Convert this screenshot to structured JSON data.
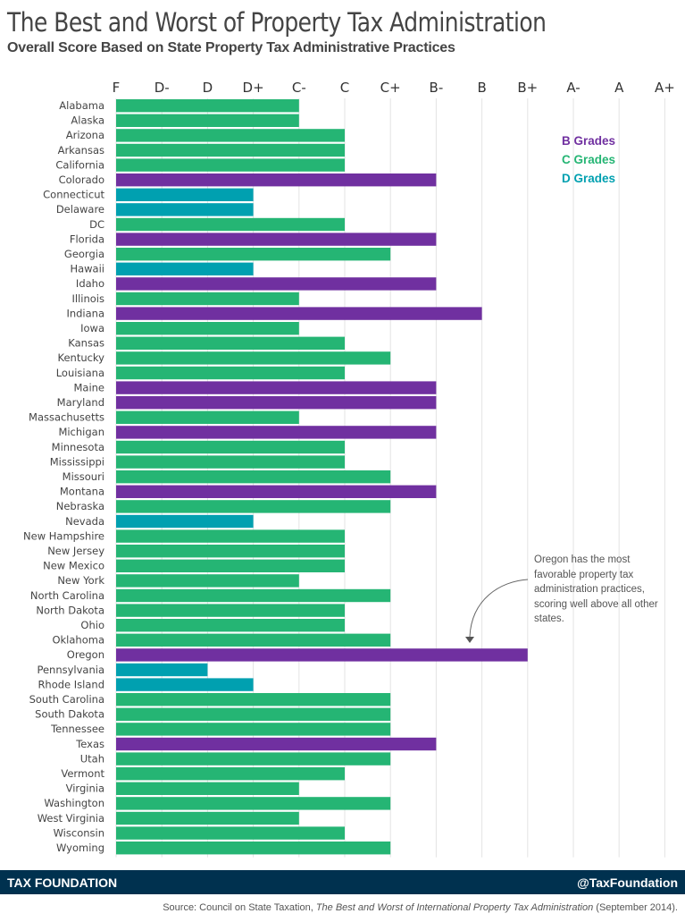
{
  "chart_data": {
    "type": "bar",
    "orientation": "horizontal",
    "title": "The Best and Worst of Property Tax Administration",
    "subtitle": "Overall Score Based on State Property Tax Administrative Practices",
    "xlabel": "",
    "ylabel": "",
    "x_ticks": [
      "F",
      "D-",
      "D",
      "D+",
      "C-",
      "C",
      "C+",
      "B-",
      "B",
      "B+",
      "A-",
      "A",
      "A+"
    ],
    "x_range": [
      "F",
      "A+"
    ],
    "grid": true,
    "legend_position": "top-right",
    "legend": [
      {
        "label": "B Grades",
        "group": "B",
        "color": "#7030a0"
      },
      {
        "label": "C Grades",
        "group": "C",
        "color": "#25b574"
      },
      {
        "label": "D Grades",
        "group": "D",
        "color": "#00a0b0"
      }
    ],
    "categories": [
      "Alabama",
      "Alaska",
      "Arizona",
      "Arkansas",
      "California",
      "Colorado",
      "Connecticut",
      "Delaware",
      "DC",
      "Florida",
      "Georgia",
      "Hawaii",
      "Idaho",
      "Illinois",
      "Indiana",
      "Iowa",
      "Kansas",
      "Kentucky",
      "Louisiana",
      "Maine",
      "Maryland",
      "Massachusetts",
      "Michigan",
      "Minnesota",
      "Mississippi",
      "Missouri",
      "Montana",
      "Nebraska",
      "Nevada",
      "New Hampshire",
      "New Jersey",
      "New Mexico",
      "New York",
      "North Carolina",
      "North Dakota",
      "Ohio",
      "Oklahoma",
      "Oregon",
      "Pennsylvania",
      "Rhode Island",
      "South Carolina",
      "South Dakota",
      "Tennessee",
      "Texas",
      "Utah",
      "Vermont",
      "Virginia",
      "Washington",
      "West Virginia",
      "Wisconsin",
      "Wyoming"
    ],
    "values": [
      "C-",
      "C-",
      "C",
      "C",
      "C",
      "B-",
      "D+",
      "D+",
      "C",
      "B-",
      "C+",
      "D+",
      "B-",
      "C-",
      "B",
      "C-",
      "C",
      "C+",
      "C",
      "B-",
      "B-",
      "C-",
      "B-",
      "C",
      "C",
      "C+",
      "B-",
      "C+",
      "D+",
      "C",
      "C",
      "C",
      "C-",
      "C+",
      "C",
      "C",
      "C+",
      "B+",
      "D",
      "D+",
      "C+",
      "C+",
      "C+",
      "B-",
      "C+",
      "C",
      "C-",
      "C+",
      "C-",
      "C",
      "C+"
    ],
    "annotation": {
      "target": "Oregon",
      "text": "Oregon has the most favorable property tax administration practices, scoring well above all other states."
    }
  },
  "footer": {
    "brand": "TAX FOUNDATION",
    "handle": "@TaxFoundation"
  },
  "source": {
    "prefix": "Source: Council on State Taxation, ",
    "title": "The Best and Worst of International Property Tax Administration",
    "suffix": " (September 2014)."
  }
}
